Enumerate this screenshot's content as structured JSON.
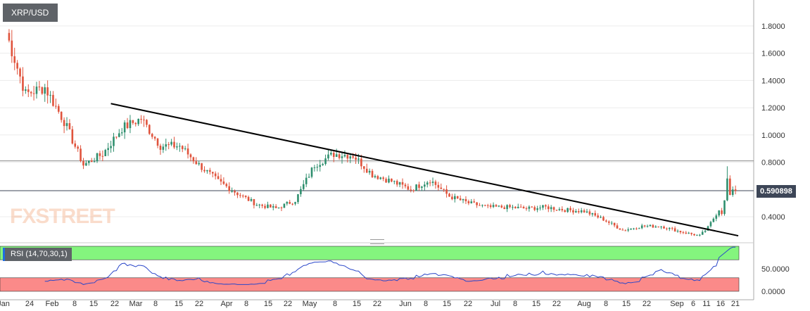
{
  "chart_title": "XRP/USD",
  "watermark": "FXSTREET",
  "price_label": "0.590898",
  "rsi_label": "RSI (14,70,30,1)",
  "colors": {
    "up": "#2f8f6e",
    "down": "#e0533c",
    "rsi_line": "#2b47c9",
    "rsi_upper_zone": "#84f57e",
    "rsi_lower_zone": "#fb8a89",
    "trendline": "#000000"
  },
  "chart_data": [
    {
      "type": "candlestick",
      "title": "XRP/USD",
      "y_ticks": [
        "1.8000",
        "1.6000",
        "1.4000",
        "1.2000",
        "1.0000",
        "0.8000",
        "0.4000"
      ],
      "ylim": [
        0.24,
        1.96
      ],
      "x_ticks": [
        "Jan",
        "24",
        "Feb",
        "8",
        "15",
        "22",
        "Mar",
        "8",
        "15",
        "22",
        "Apr",
        "8",
        "15",
        "22",
        "May",
        "8",
        "15",
        "22",
        "Jun",
        "8",
        "15",
        "22",
        "Jul",
        "8",
        "15",
        "22",
        "Aug",
        "8",
        "15",
        "22",
        "Sep",
        "6",
        "11",
        "16",
        "21"
      ],
      "horizontal_lines": [
        0.81,
        0.5909
      ],
      "current_price": 0.590898,
      "trendline": {
        "start": {
          "x": "Feb 8",
          "y": 1.23
        },
        "end": {
          "x": "Sep 23",
          "y": 0.26
        }
      },
      "closes_weekly_approx": [
        {
          "x": "Jan 1",
          "close": 1.75
        },
        {
          "x": "Jan 8",
          "close": 1.3
        },
        {
          "x": "Jan 15",
          "close": 1.35
        },
        {
          "x": "Jan 22",
          "close": 1.1
        },
        {
          "x": "Jan 29",
          "close": 0.78
        },
        {
          "x": "Feb 5",
          "close": 0.86
        },
        {
          "x": "Feb 12",
          "close": 1.05
        },
        {
          "x": "Feb 19",
          "close": 1.12
        },
        {
          "x": "Feb 26",
          "close": 0.92
        },
        {
          "x": "Mar 5",
          "close": 0.92
        },
        {
          "x": "Mar 12",
          "close": 0.78
        },
        {
          "x": "Mar 19",
          "close": 0.66
        },
        {
          "x": "Mar 26",
          "close": 0.57
        },
        {
          "x": "Apr 2",
          "close": 0.49
        },
        {
          "x": "Apr 9",
          "close": 0.46
        },
        {
          "x": "Apr 16",
          "close": 0.52
        },
        {
          "x": "Apr 23",
          "close": 0.78
        },
        {
          "x": "Apr 30",
          "close": 0.86
        },
        {
          "x": "May 7",
          "close": 0.85
        },
        {
          "x": "May 14",
          "close": 0.71
        },
        {
          "x": "May 21",
          "close": 0.66
        },
        {
          "x": "May 28",
          "close": 0.6
        },
        {
          "x": "Jun 4",
          "close": 0.67
        },
        {
          "x": "Jun 11",
          "close": 0.55
        },
        {
          "x": "Jun 18",
          "close": 0.5
        },
        {
          "x": "Jun 25",
          "close": 0.47
        },
        {
          "x": "Jul 2",
          "close": 0.47
        },
        {
          "x": "Jul 9",
          "close": 0.46
        },
        {
          "x": "Jul 16",
          "close": 0.47
        },
        {
          "x": "Jul 23",
          "close": 0.45
        },
        {
          "x": "Jul 30",
          "close": 0.44
        },
        {
          "x": "Aug 6",
          "close": 0.38
        },
        {
          "x": "Aug 13",
          "close": 0.3
        },
        {
          "x": "Aug 20",
          "close": 0.33
        },
        {
          "x": "Aug 27",
          "close": 0.33
        },
        {
          "x": "Sep 3",
          "close": 0.29
        },
        {
          "x": "Sep 10",
          "close": 0.26
        },
        {
          "x": "Sep 17",
          "close": 0.32
        },
        {
          "x": "Sep 21",
          "close": 0.59
        }
      ]
    },
    {
      "type": "line",
      "title": "RSI (14,70,30,1)",
      "y_ticks": [
        "50.0000",
        "0.0000"
      ],
      "ylim": [
        0,
        100
      ],
      "zones": {
        "upper": [
          70,
          100
        ],
        "lower": [
          0,
          30
        ]
      }
    }
  ]
}
